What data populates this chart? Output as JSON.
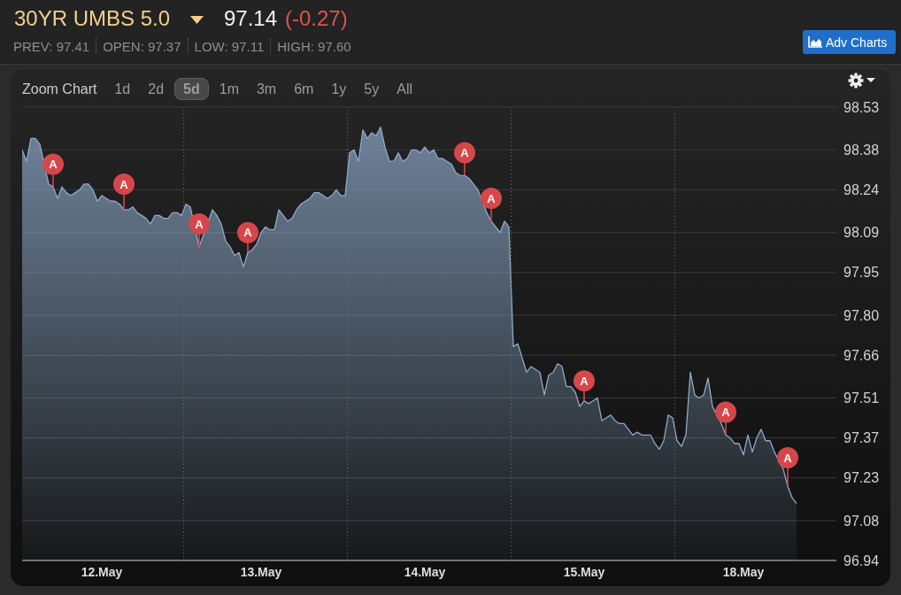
{
  "chart_data": {
    "type": "area",
    "title": "30YR UMBS 5.0",
    "annotations": [
      "97.14",
      "(-0.27)",
      "PREV: 97.41",
      "OPEN: 97.37",
      "LOW: 97.11",
      "HIGH: 97.60",
      "Adv Charts",
      "Zoom Chart",
      "1d",
      "2d",
      "5d",
      "1m",
      "3m",
      "6m",
      "1y",
      "5y",
      "All"
    ],
    "categories": [
      null,
      null,
      null,
      null,
      null,
      null,
      null,
      null,
      null,
      null,
      null,
      null,
      null,
      null,
      null,
      null,
      null,
      null,
      "12.May",
      null,
      null,
      null,
      null,
      null,
      null,
      null,
      null,
      null,
      null,
      null,
      null,
      null,
      null,
      null,
      null,
      null,
      null,
      null,
      null,
      null,
      null,
      null,
      null,
      null,
      null,
      null,
      null,
      null,
      null,
      null,
      null,
      null,
      null,
      null,
      "13.May",
      null,
      null,
      null,
      null,
      null,
      null,
      null,
      null,
      null,
      null,
      null,
      null,
      null,
      null,
      null,
      null,
      null,
      null,
      null,
      null,
      null,
      null,
      null,
      null,
      null,
      null,
      null,
      null,
      null,
      null,
      null,
      null,
      null,
      null,
      null,
      null,
      "14.May",
      null,
      null,
      null,
      null,
      null,
      null,
      null,
      null,
      null,
      null,
      null,
      null,
      null,
      null,
      null,
      null,
      null,
      null,
      null,
      null,
      null,
      null,
      null,
      null,
      null,
      null,
      null,
      null,
      null,
      null,
      null,
      null,
      null,
      null,
      null,
      "15.May",
      null,
      null,
      null,
      null,
      null,
      null,
      null,
      null,
      null,
      null,
      null,
      null,
      null,
      null,
      null,
      null,
      null,
      null,
      null,
      null,
      null,
      null,
      null,
      null,
      null,
      null,
      null,
      null,
      null,
      null,
      null,
      null,
      null,
      null,
      null,
      "18.May",
      null,
      null,
      null,
      null,
      null,
      null,
      null,
      null,
      null,
      null,
      null,
      null,
      null,
      null,
      null,
      null,
      null,
      null,
      null,
      null,
      null
    ],
    "series": [
      {
        "color": "#8eaacb",
        "values": [
          98.38,
          98.34,
          98.42,
          98.42,
          98.4,
          null,
          98.26,
          98.25,
          98.21,
          98.25,
          98.23,
          98.22,
          98.23,
          98.24,
          98.26,
          98.26,
          98.24,
          98.2,
          98.22,
          98.21,
          98.2,
          98.2,
          98.19,
          98.17,
          98.17,
          98.18,
          98.16,
          98.15,
          98.14,
          98.12,
          98.15,
          98.15,
          98.14,
          98.14,
          98.16,
          98.16,
          98.15,
          98.19,
          98.18,
          null,
          98.04,
          null,
          null,
          98.17,
          98.15,
          98.12,
          98.06,
          98.04,
          98.01,
          98.02,
          97.97,
          98.02,
          98.03,
          98.05,
          98.09,
          98.11,
          98.1,
          98.1,
          98.17,
          98.15,
          98.13,
          98.14,
          98.17,
          98.19,
          98.2,
          98.21,
          98.23,
          98.23,
          98.22,
          98.21,
          98.22,
          98.24,
          98.22,
          98.22,
          98.37,
          98.38,
          98.34,
          98.45,
          98.42,
          98.44,
          98.43,
          98.46,
          98.39,
          98.34,
          98.34,
          98.37,
          98.34,
          98.35,
          98.38,
          98.38,
          98.37,
          98.39,
          98.37,
          98.38,
          98.35,
          98.35,
          98.34,
          98.33,
          98.3,
          98.29,
          98.29,
          98.28,
          98.26,
          98.24,
          null,
          98.16,
          98.13,
          98.11,
          98.09,
          98.13,
          98.11,
          97.69,
          97.7,
          97.65,
          97.6,
          97.62,
          97.61,
          97.6,
          97.52,
          97.59,
          97.6,
          97.63,
          97.62,
          97.55,
          97.55,
          97.53,
          97.48,
          97.5,
          97.49,
          97.5,
          97.51,
          97.43,
          97.44,
          97.45,
          97.43,
          97.42,
          97.42,
          97.4,
          97.38,
          97.39,
          97.38,
          97.38,
          97.38,
          97.35,
          97.33,
          97.36,
          97.45,
          97.44,
          97.36,
          97.34,
          97.38,
          97.6,
          97.52,
          97.51,
          97.52,
          97.58,
          97.48,
          null,
          97.42,
          97.38,
          97.37,
          97.35,
          97.35,
          97.31,
          97.38,
          97.32,
          97.37,
          97.4,
          97.36,
          97.36,
          97.32,
          null,
          97.26,
          97.2,
          97.16,
          97.14,
          null,
          null,
          null,
          null,
          null,
          null,
          null,
          null,
          null
        ]
      },
      {
        "type": "scatter",
        "name": "A",
        "color": "#d6474a",
        "marker": "circle",
        "values": [
          null,
          null,
          null,
          null,
          null,
          null,
          null,
          98.33,
          null,
          null,
          null,
          null,
          null,
          null,
          null,
          null,
          null,
          null,
          null,
          null,
          null,
          null,
          null,
          98.26,
          null,
          null,
          null,
          null,
          null,
          null,
          null,
          null,
          null,
          null,
          null,
          null,
          null,
          null,
          null,
          null,
          98.12,
          null,
          null,
          null,
          null,
          null,
          null,
          null,
          null,
          null,
          null,
          98.09,
          null,
          null,
          null,
          null,
          null,
          null,
          null,
          null,
          null,
          null,
          null,
          null,
          null,
          null,
          null,
          null,
          null,
          null,
          null,
          null,
          null,
          null,
          null,
          null,
          null,
          null,
          null,
          null,
          null,
          null,
          null,
          null,
          null,
          null,
          null,
          null,
          null,
          null,
          null,
          null,
          null,
          null,
          null,
          null,
          null,
          null,
          null,
          null,
          98.37,
          null,
          null,
          null,
          null,
          null,
          98.21,
          null,
          null,
          null,
          null,
          null,
          null,
          null,
          null,
          null,
          null,
          null,
          null,
          null,
          null,
          null,
          null,
          null,
          null,
          null,
          null,
          97.57,
          null,
          null,
          null,
          null,
          null,
          null,
          null,
          null,
          null,
          null,
          null,
          null,
          null,
          null,
          null,
          null,
          null,
          null,
          null,
          null,
          null,
          null,
          null,
          null,
          null,
          null,
          null,
          null,
          null,
          null,
          null,
          97.46,
          null,
          null,
          null,
          null,
          null,
          null,
          null,
          null,
          null,
          null,
          null,
          null,
          null,
          97.3,
          null,
          null,
          null,
          null,
          null,
          null,
          null,
          null,
          null,
          null,
          null
        ]
      }
    ],
    "ylim": [
      96.94,
      98.53
    ],
    "yticks": [
      96.94,
      97.08,
      97.23,
      97.37,
      97.51,
      97.66,
      {
        "value": 97.8,
        "label": "97.80"
      },
      97.95,
      98.09,
      98.24,
      98.38,
      98.53
    ],
    "grid": "y"
  }
}
